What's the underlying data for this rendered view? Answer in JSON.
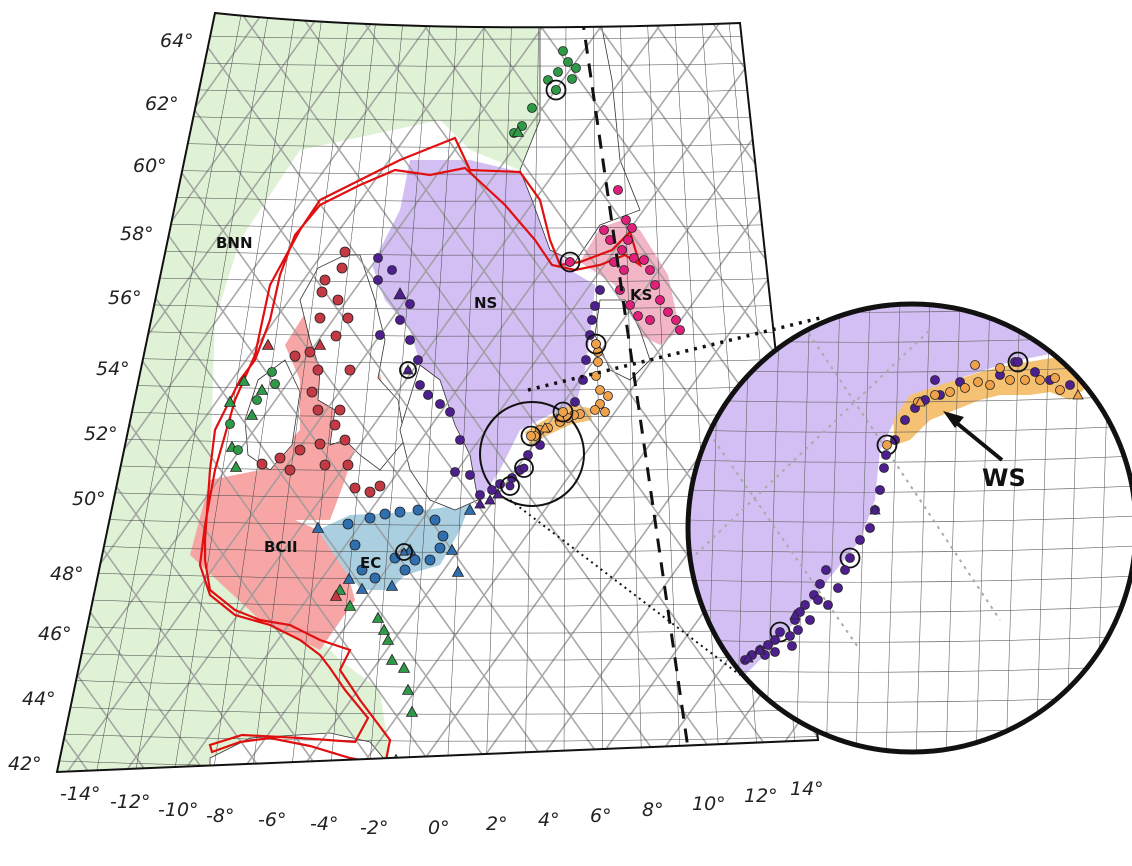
{
  "map": {
    "lat_labels": [
      "64°",
      "62°",
      "60°",
      "58°",
      "56°",
      "54°",
      "52°",
      "50°",
      "48°",
      "46°",
      "44°",
      "42°"
    ],
    "lon_labels": [
      "-14°",
      "-12°",
      "-10°",
      "-8°",
      "-6°",
      "-4°",
      "-2°",
      "0°",
      "2°",
      "4°",
      "6°",
      "8°",
      "10°",
      "12°",
      "14°"
    ],
    "regions": {
      "bnn": "BNN",
      "bcii": "BCII",
      "ec": "EC",
      "ns": "NS",
      "ks": "KS",
      "ws": "WS"
    },
    "colors": {
      "bnn": "#dff2d6",
      "bcii": "#f7a0a0",
      "ec": "#a9cfe0",
      "ns": "#d3bff4",
      "ks": "#f3b6c7",
      "ws": "#f5c173",
      "green_marker": "#2e9a48",
      "red_marker": "#c33a44",
      "blue_marker": "#2f6fb0",
      "purple_marker": "#4e1f8e",
      "orange_marker": "#f0a24a",
      "pink_marker": "#e0207a",
      "outline": "#e01010"
    }
  }
}
